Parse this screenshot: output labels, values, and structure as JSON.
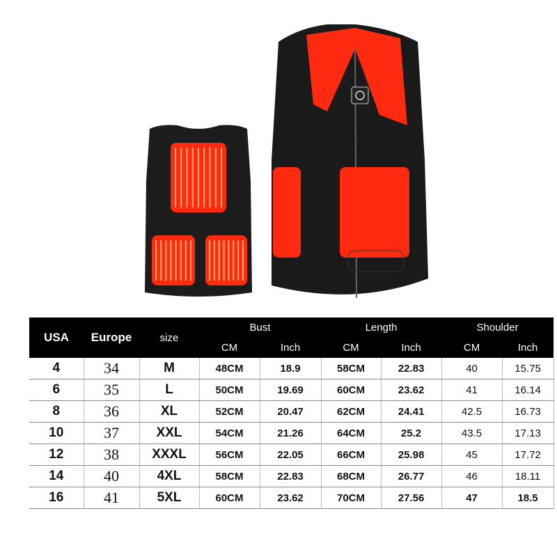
{
  "header": {
    "usa": "USA",
    "europe": "Europe",
    "size": "size",
    "groups": [
      "Bust",
      "Length",
      "Shoulder"
    ],
    "units": [
      "CM",
      "Inch",
      "CM",
      "Inch",
      "CM",
      "Inch"
    ]
  },
  "rows": [
    [
      "4",
      "34",
      "M",
      "48CM",
      "18.9",
      "58CM",
      "22.83",
      "40",
      "15.75"
    ],
    [
      "6",
      "35",
      "L",
      "50CM",
      "19.69",
      "60CM",
      "23.62",
      "41",
      "16.14"
    ],
    [
      "8",
      "36",
      "XL",
      "52CM",
      "20.47",
      "62CM",
      "24.41",
      "42.5",
      "16.73"
    ],
    [
      "10",
      "37",
      "XXL",
      "54CM",
      "21.26",
      "64CM",
      "25.2",
      "43.5",
      "17.13"
    ],
    [
      "12",
      "38",
      "XXXL",
      "56CM",
      "22.05",
      "66CM",
      "25.98",
      "45",
      "17.72"
    ],
    [
      "14",
      "40",
      "4XL",
      "58CM",
      "22.83",
      "68CM",
      "26.77",
      "46",
      "18.11"
    ],
    [
      "16",
      "41",
      "5XL",
      "60CM",
      "23.62",
      "70CM",
      "27.56",
      "47",
      "18.5"
    ]
  ],
  "colors": {
    "vest": "#1a1a1a",
    "heat": "#ff2a10",
    "heat_line": "#ffb070"
  },
  "icons": [
    "power-button-icon"
  ]
}
